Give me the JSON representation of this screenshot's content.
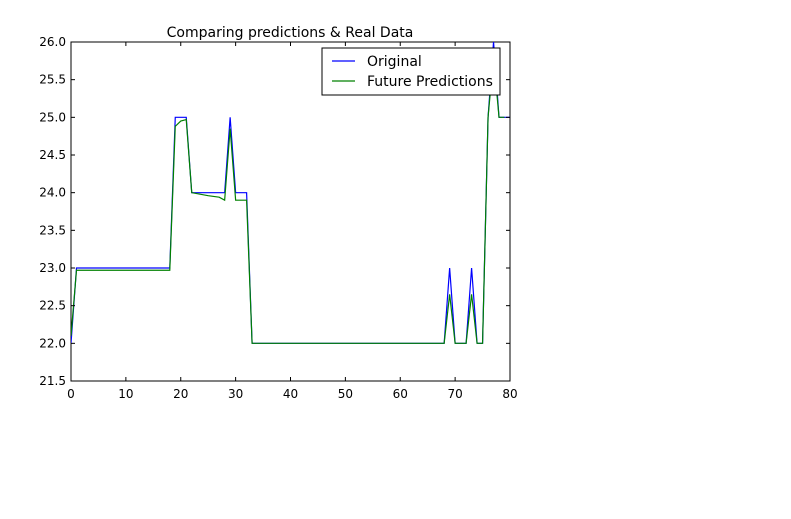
{
  "chart_data": {
    "type": "line",
    "title": "Comparing predictions & Real Data",
    "xlabel": "",
    "ylabel": "",
    "xlim": [
      0,
      80
    ],
    "ylim": [
      21.5,
      26.0
    ],
    "xticks": [
      "0",
      "10",
      "20",
      "30",
      "40",
      "50",
      "60",
      "70",
      "80"
    ],
    "yticks": [
      "21.5",
      "22.0",
      "22.5",
      "23.0",
      "23.5",
      "24.0",
      "24.5",
      "25.0",
      "25.5",
      "26.0"
    ],
    "grid": false,
    "legend_position": "top-right",
    "series": [
      {
        "name": "Original",
        "color": "#0000ff",
        "x": [
          0,
          1,
          18,
          19,
          20,
          21,
          22,
          28,
          29,
          30,
          31,
          32,
          33,
          68,
          69,
          70,
          71,
          72,
          73,
          74,
          75,
          76,
          77,
          78,
          79,
          80
        ],
        "y": [
          22.0,
          23.0,
          23.0,
          25.0,
          25.0,
          25.0,
          24.0,
          24.0,
          25.0,
          24.0,
          24.0,
          24.0,
          22.0,
          22.0,
          23.0,
          22.0,
          22.0,
          22.0,
          23.0,
          22.0,
          22.0,
          25.0,
          26.0,
          25.0,
          25.0,
          25.0
        ]
      },
      {
        "name": "Future Predictions",
        "color": "#008000",
        "x": [
          0,
          1,
          18,
          19,
          20,
          21,
          22,
          25,
          27,
          28,
          29,
          30,
          31,
          32,
          33,
          68,
          69,
          70,
          71,
          72,
          73,
          74,
          75,
          76,
          77,
          78,
          79
        ],
        "y": [
          22.1,
          22.97,
          22.97,
          24.88,
          24.95,
          24.97,
          24.0,
          23.96,
          23.94,
          23.9,
          24.85,
          23.9,
          23.9,
          23.9,
          22.0,
          22.0,
          22.65,
          22.0,
          22.0,
          22.0,
          22.65,
          22.0,
          22.0,
          25.0,
          25.8,
          25.0,
          25.0
        ]
      }
    ]
  }
}
